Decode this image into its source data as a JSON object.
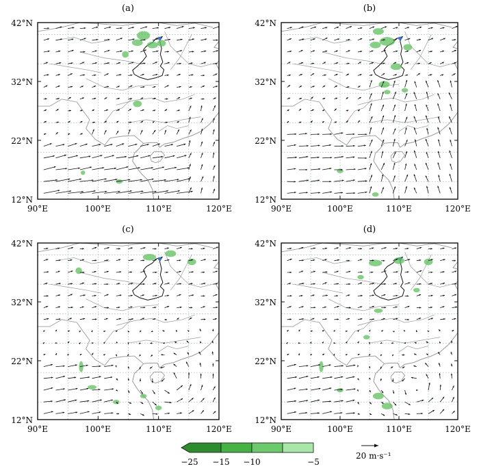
{
  "panels": [
    {
      "id": "a",
      "label": "(a)"
    },
    {
      "id": "b",
      "label": "(b)"
    },
    {
      "id": "c",
      "label": "(c)"
    },
    {
      "id": "d",
      "label": "(d)"
    }
  ],
  "axes": {
    "x_ticks": [
      "90°E",
      "100°E",
      "110°E",
      "120°E"
    ],
    "y_ticks": [
      "42°N",
      "32°N",
      "22°N",
      "12°N"
    ],
    "lon_range": [
      90,
      120
    ],
    "lat_range": [
      12,
      42
    ]
  },
  "colorbar": {
    "tick_labels": [
      "−25",
      "−15",
      "−10",
      "−5"
    ],
    "colors": [
      "#2e8b2e",
      "#46b246",
      "#6cc96c",
      "#a9e6a9"
    ]
  },
  "reference_vector": {
    "label": "20 m·s⁻¹"
  },
  "colors": {
    "shading": "#5cc05c",
    "vector": "#111111",
    "boundary": "#9a9a9a",
    "grid": "#8aa4a4",
    "marker": "#3a6fd8"
  }
}
